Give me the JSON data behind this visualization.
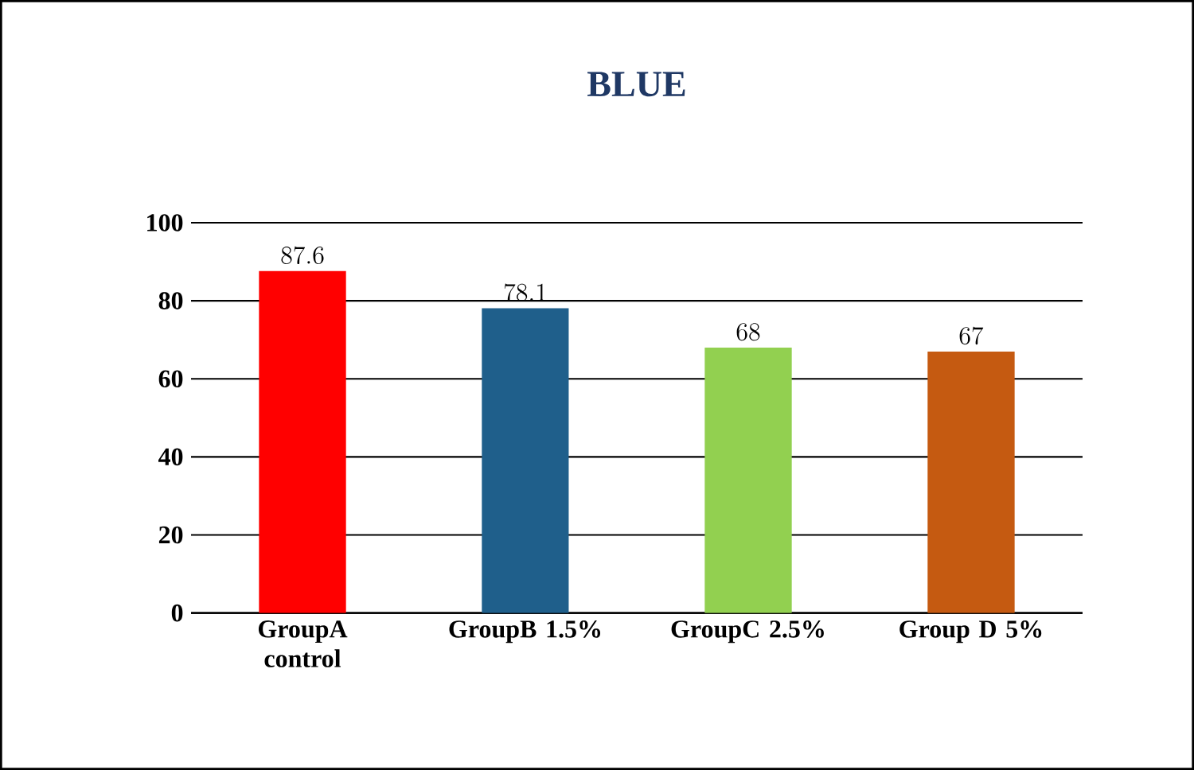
{
  "chart_data": {
    "type": "bar",
    "title": "BLUE",
    "categories": [
      "GroupA control",
      "GroupB 1.5%",
      "GroupC 2.5%",
      "Group D 5%"
    ],
    "values": [
      87.6,
      78.1,
      68,
      67
    ],
    "colors": [
      "#ff0000",
      "#1f5f8b",
      "#92d050",
      "#c55a11"
    ],
    "ylim": [
      0,
      100
    ],
    "yticks": [
      0,
      20,
      40,
      60,
      80,
      100
    ],
    "grid": "y",
    "data_labels": true
  }
}
